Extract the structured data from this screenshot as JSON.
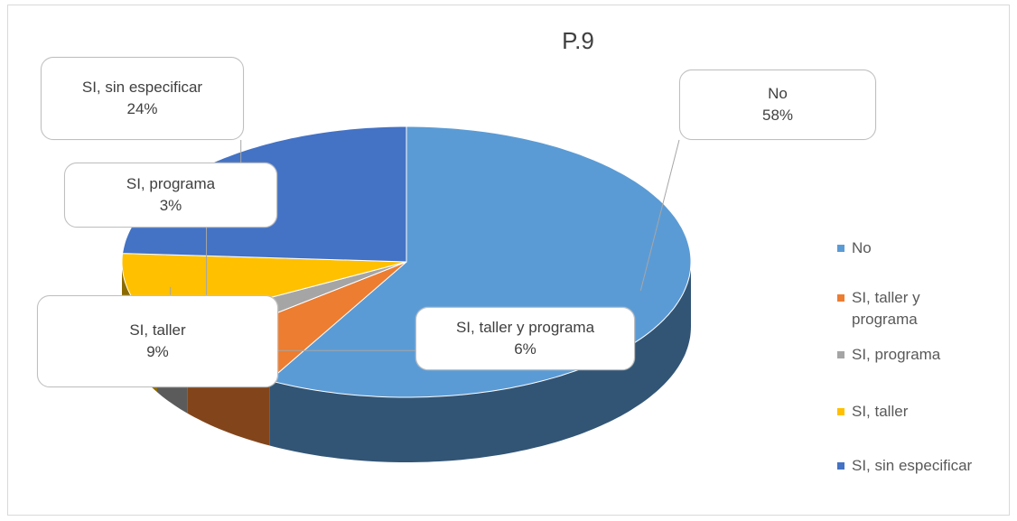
{
  "chart_data": {
    "type": "pie3d",
    "title": "P.9",
    "categories": [
      "No",
      "SI, taller y programa",
      "SI, programa",
      "SI, taller",
      "SI, sin especificar"
    ],
    "values": [
      58,
      6,
      3,
      9,
      24
    ],
    "value_labels": [
      "58%",
      "6%",
      "3%",
      "9%",
      "24%"
    ],
    "colors": [
      "#5b9bd5",
      "#ed7d31",
      "#a5a5a5",
      "#ffc000",
      "#4472c4"
    ],
    "legend": "right"
  }
}
